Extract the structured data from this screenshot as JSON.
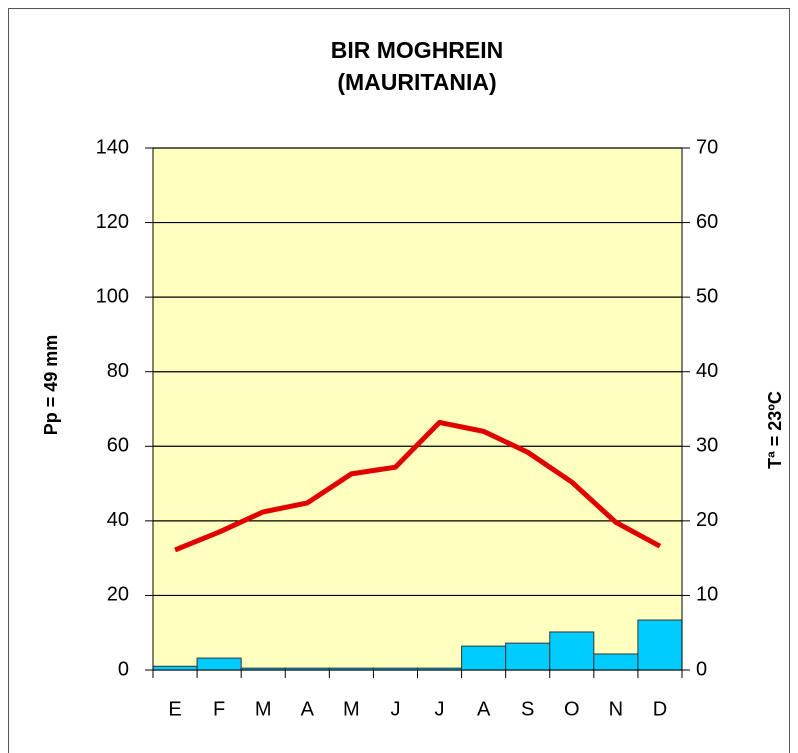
{
  "chart_data": {
    "type": "combo",
    "title": [
      "BIR MOGHREIN",
      "(MAURITANIA)"
    ],
    "y_label": "Pp = 49 mm",
    "y2_label": "Tª = 23ºC",
    "categories": [
      "E",
      "F",
      "M",
      "A",
      "M",
      "J",
      "J",
      "A",
      "S",
      "O",
      "N",
      "D"
    ],
    "series": [
      {
        "type": "bar",
        "color": "#00ccff",
        "values": [
          1,
          3.2,
          0.5,
          0.5,
          0.5,
          0.5,
          0.5,
          6.4,
          7.2,
          10.2,
          4.3,
          13.4
        ]
      },
      {
        "type": "line",
        "axis": "y2",
        "color": "#e00000",
        "values": [
          16.1,
          18.5,
          21.2,
          22.4,
          26.3,
          27.2,
          33.2,
          32,
          29.2,
          25.2,
          19.8,
          16.6
        ]
      }
    ],
    "ylim": [
      0,
      140
    ],
    "yticks": [
      0,
      20,
      40,
      60,
      80,
      100,
      120,
      140
    ],
    "y2lim": [
      0,
      70
    ],
    "y2ticks": [
      0,
      10,
      20,
      30,
      40,
      50,
      60,
      70
    ],
    "grid": true,
    "plot_background": "#ffffc0"
  }
}
